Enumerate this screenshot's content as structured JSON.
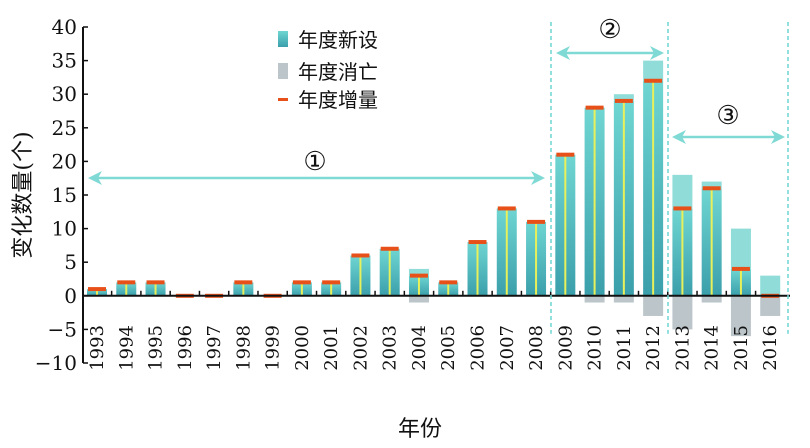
{
  "chart_data": {
    "type": "bar",
    "title": "",
    "xlabel": "年份",
    "ylabel": "变化数量(个)",
    "ylim": [
      -10,
      40
    ],
    "yticks": [
      "−10",
      "−5",
      "0",
      "5",
      "10",
      "15",
      "20",
      "25",
      "30",
      "35",
      "40"
    ],
    "ytick_values": [
      -10,
      -5,
      0,
      5,
      10,
      15,
      20,
      25,
      30,
      35,
      40
    ],
    "categories": [
      "1993",
      "1994",
      "1995",
      "1996",
      "1997",
      "1998",
      "1999",
      "2000",
      "2001",
      "2002",
      "2003",
      "2004",
      "2005",
      "2006",
      "2007",
      "2008",
      "2009",
      "2010",
      "2011",
      "2012",
      "2013",
      "2014",
      "2015",
      "2016"
    ],
    "series": [
      {
        "name": "年度新设",
        "type": "bar",
        "color": "#5cc7c7",
        "values": [
          1,
          2,
          2,
          0,
          0,
          2,
          0,
          2,
          2,
          6,
          7,
          4,
          2,
          8,
          13,
          11,
          21,
          28,
          30,
          35,
          18,
          17,
          10,
          3
        ]
      },
      {
        "name": "年度消亡",
        "type": "bar",
        "color": "#bcc6ca",
        "values": [
          0,
          0,
          0,
          0,
          0,
          0,
          0,
          0,
          0,
          0,
          0,
          -1,
          0,
          0,
          0,
          0,
          0,
          -1,
          -1,
          -3,
          -5,
          -1,
          -6,
          -3
        ]
      },
      {
        "name": "年度增量",
        "type": "marker",
        "color": "#e8501a",
        "values": [
          1,
          2,
          2,
          0,
          0,
          2,
          0,
          2,
          2,
          6,
          7,
          3,
          2,
          8,
          13,
          11,
          21,
          28,
          29,
          32,
          13,
          16,
          4,
          0
        ]
      }
    ],
    "legend_position": "top-center",
    "periods": [
      {
        "label": "①",
        "from": "1993",
        "to": "2008"
      },
      {
        "label": "②",
        "from": "2009",
        "to": "2012"
      },
      {
        "label": "③",
        "from": "2013",
        "to": "2016"
      }
    ]
  }
}
